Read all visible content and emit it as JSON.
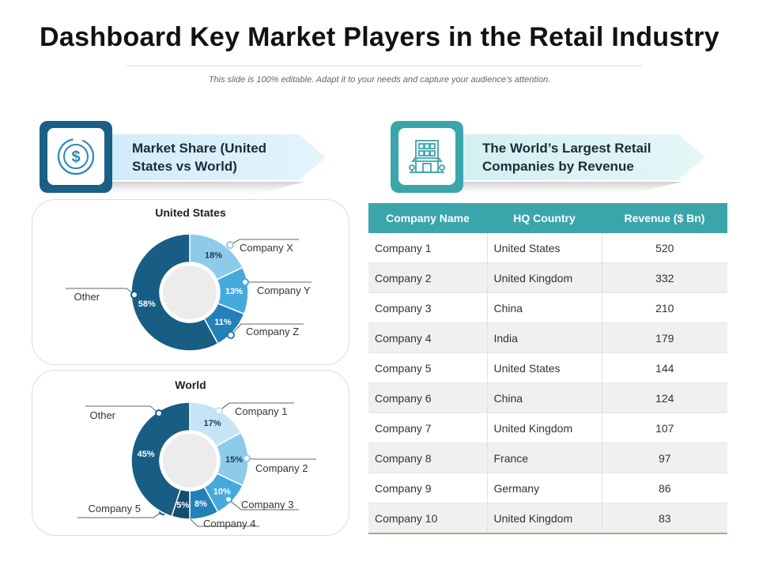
{
  "header": {
    "title": "Dashboard Key Market Players in the Retail Industry",
    "subtitle": "This slide is 100% editable. Adapt it to your needs and capture your audience’s attention."
  },
  "left_banner": {
    "title": "Market Share (United States vs World)",
    "icon": "dollar-coin-icon",
    "color": "#1a5f85"
  },
  "right_banner": {
    "title": "The World’s Largest Retail Companies by Revenue",
    "icon": "store-building-icon",
    "color": "#3aa6ab"
  },
  "chart_data": [
    {
      "type": "pie",
      "title": "United States",
      "slices": [
        {
          "label": "Company X",
          "value": 18,
          "display": "18%",
          "color": "#8ecbeb"
        },
        {
          "label": "Company Y",
          "value": 13,
          "display": "13%",
          "color": "#45a9dc"
        },
        {
          "label": "Company Z",
          "value": 11,
          "display": "11%",
          "color": "#2480b8"
        },
        {
          "label": "Other",
          "value": 58,
          "display": "58%",
          "color": "#175d84"
        }
      ]
    },
    {
      "type": "pie",
      "title": "World",
      "slices": [
        {
          "label": "Company 1",
          "value": 17,
          "display": "17%",
          "color": "#c5e4f5"
        },
        {
          "label": "Company 2",
          "value": 15,
          "display": "15%",
          "color": "#8ecbeb"
        },
        {
          "label": "Company 3",
          "value": 10,
          "display": "10%",
          "color": "#45a9dc"
        },
        {
          "label": "Company 4",
          "value": 8,
          "display": "8%",
          "color": "#2480b8"
        },
        {
          "label": "Company 5",
          "value": 5,
          "display": "5%",
          "color": "#124e70"
        },
        {
          "label": "Other",
          "value": 45,
          "display": "45%",
          "color": "#175d84"
        }
      ]
    },
    {
      "type": "table",
      "columns": [
        "Company Name",
        "HQ Country",
        "Revenue ($ Bn)"
      ],
      "rows": [
        [
          "Company 1",
          "United States",
          "520"
        ],
        [
          "Company 2",
          "United Kingdom",
          "332"
        ],
        [
          "Company 3",
          "China",
          "210"
        ],
        [
          "Company 4",
          "India",
          "179"
        ],
        [
          "Company 5",
          "United States",
          "144"
        ],
        [
          "Company 6",
          "China",
          "124"
        ],
        [
          "Company 7",
          "United Kingdom",
          "107"
        ],
        [
          "Company 8",
          "France",
          "97"
        ],
        [
          "Company 9",
          "Germany",
          "86"
        ],
        [
          "Company 10",
          "United Kingdom",
          "83"
        ]
      ]
    }
  ]
}
